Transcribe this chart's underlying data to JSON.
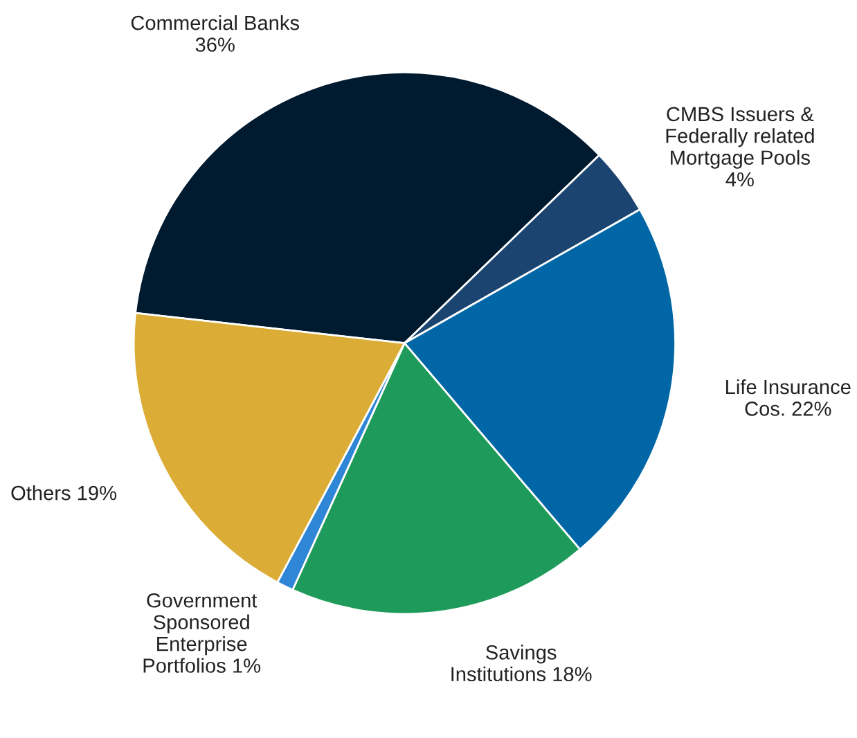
{
  "chart_data": {
    "type": "pie",
    "categories": [
      "Commercial Banks",
      "CMBS Issuers &\nFederally related\nMortgage Pools",
      "Life Insurance\nCos.",
      "Savings\nInstitutions",
      "Government\nSponsored\nEnterprise\nPortfolios",
      "Others"
    ],
    "values": [
      36,
      4,
      22,
      18,
      1,
      19
    ],
    "value_labels": [
      "36%",
      "4%",
      "22%",
      "18%",
      "1%",
      "19%"
    ],
    "colors": [
      "#001a30",
      "#1c4470",
      "#0066a6",
      "#1e9a5a",
      "#2f86d6",
      "#dbad36"
    ]
  }
}
